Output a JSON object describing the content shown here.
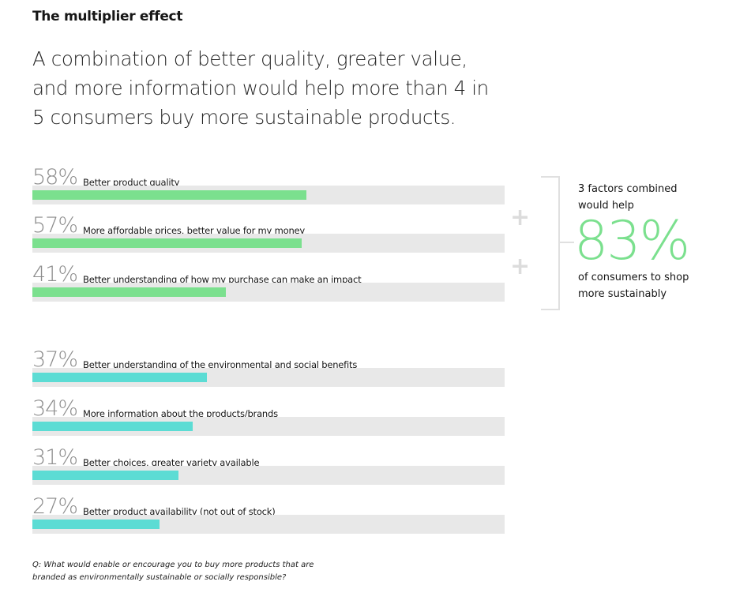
{
  "kicker": "The multiplier effect",
  "headline": "A combination of better quality, greater value, and more information would help more than 4 in 5 consumers buy more sustainable products.",
  "callout": {
    "top": "3 factors combined would help",
    "value": "83%",
    "bottom": "of consumers to shop more sustainably",
    "plus": "+"
  },
  "note": "Q: What would enable or encourage you to buy more products that are branded as environmentally sustainable or socially responsible?",
  "colors": {
    "group1": "#7be08e",
    "group2": "#5cdcd4",
    "track": "#e8e8e8"
  },
  "chart_data": {
    "type": "bar",
    "orientation": "horizontal",
    "xlim": [
      0,
      100
    ],
    "categories": [
      "Better product quality",
      "More affordable prices, better value for my money",
      "Better understanding of how my purchase can make an impact",
      "Better understanding of the environmental and social benefits",
      "More information about the products/brands",
      "Better choices, greater variety available",
      "Better product availability (not out of stock)"
    ],
    "values": [
      58,
      57,
      41,
      37,
      34,
      31,
      27
    ],
    "labels": [
      "58%",
      "57%",
      "41%",
      "37%",
      "34%",
      "31%",
      "27%"
    ],
    "groups": [
      1,
      1,
      1,
      2,
      2,
      2,
      2
    ]
  }
}
